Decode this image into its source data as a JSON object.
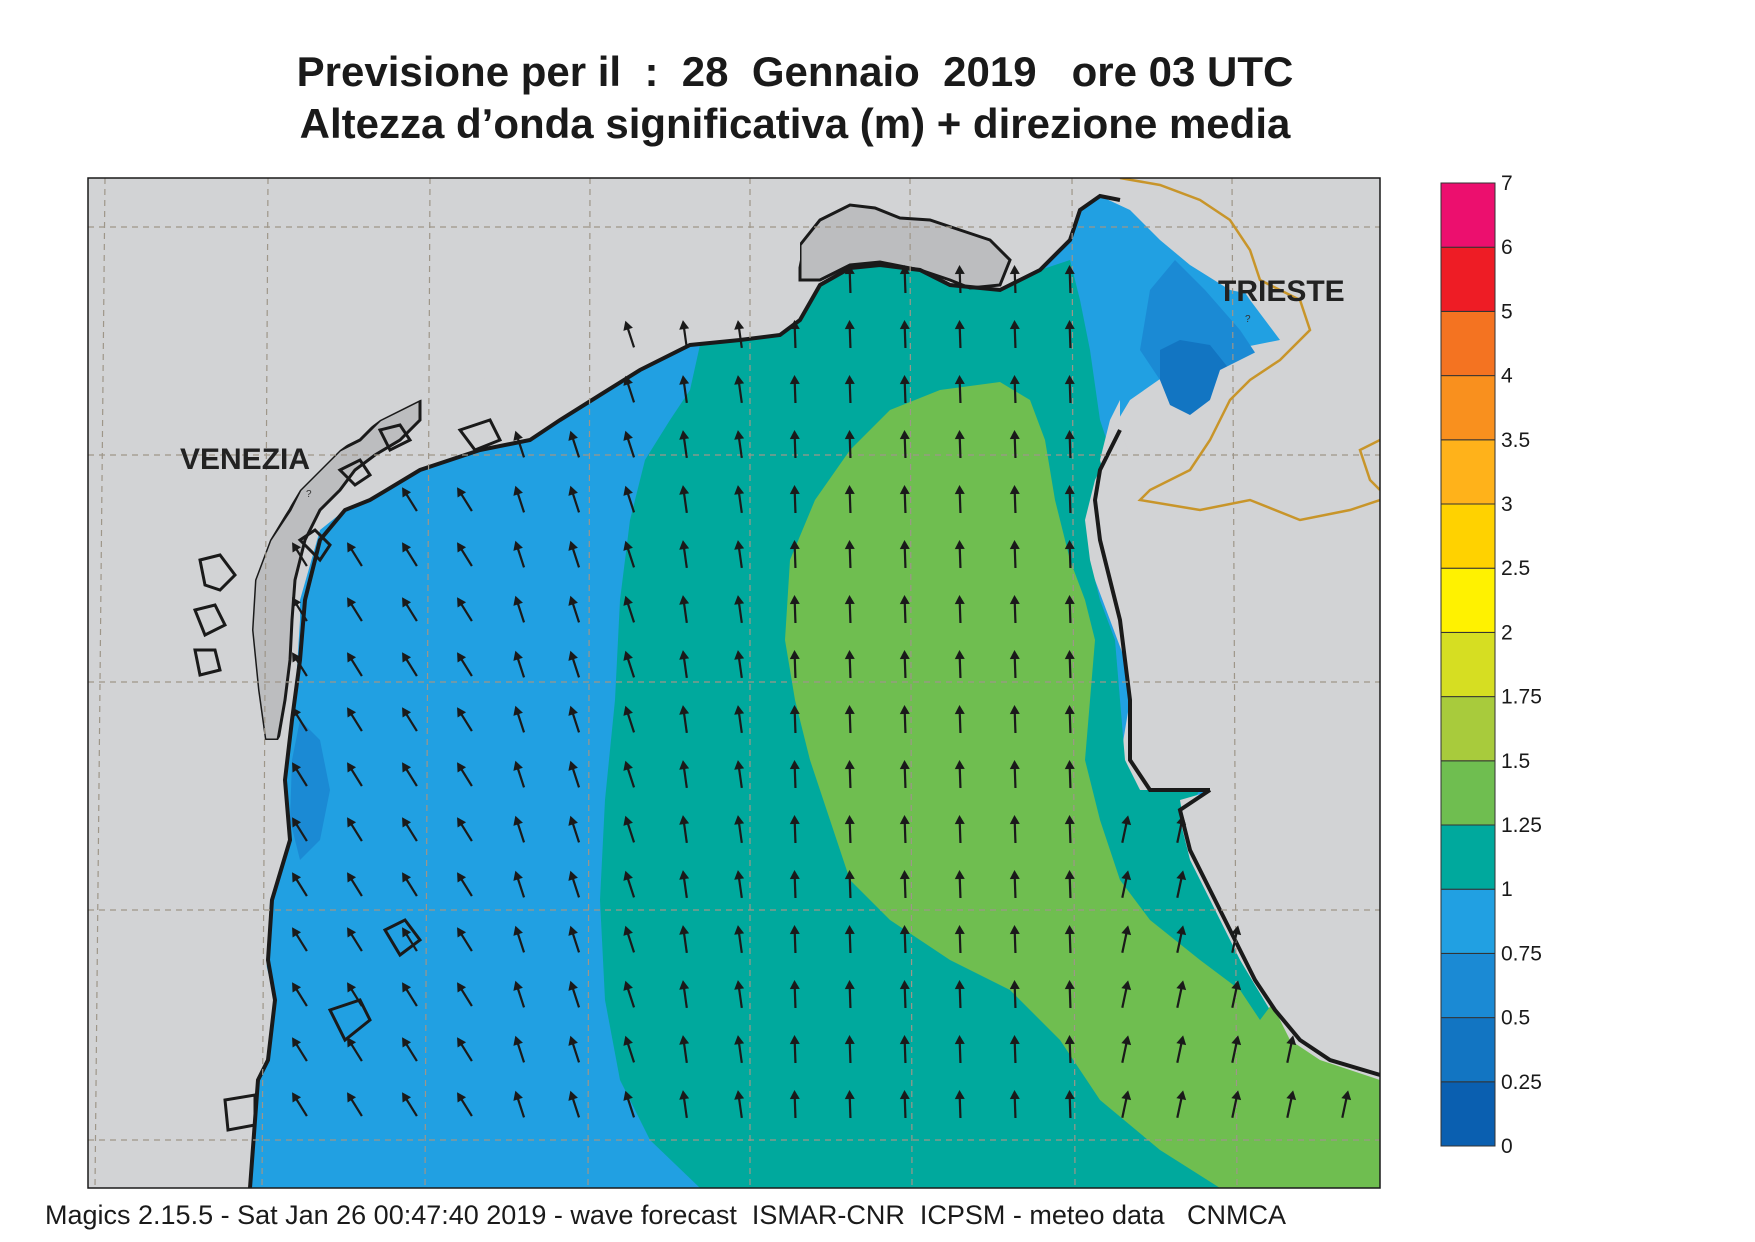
{
  "title_line1": "Previsione per il  :  28  Gennaio  2019   ore 03 UTC",
  "title_line2": "Altezza d’onda significativa (m) + direzione media",
  "cities": {
    "venezia": "VENEZIA",
    "trieste": "TRIESTE"
  },
  "footer": "Magics 2.15.5 - Sat Jan 26 00:47:40 2019 - wave forecast  ISMAR-CNR  ICPSM - meteo data   CNMCA",
  "colorbar": {
    "labels": [
      "0",
      "0.25",
      "0.5",
      "0.75",
      "1",
      "1.25",
      "1.5",
      "1.75",
      "2",
      "2.5",
      "3",
      "3.5",
      "4",
      "5",
      "6",
      "7"
    ],
    "colors": [
      "#0a5fb0",
      "#1275c2",
      "#1b8ad4",
      "#21a0e2",
      "#00a99d",
      "#6fbe50",
      "#a8cb3c",
      "#d6de22",
      "#fff200",
      "#ffd200",
      "#ffb21a",
      "#f9901e",
      "#f47321",
      "#ee1c25",
      "#ec0f6e"
    ]
  },
  "colors": {
    "land": "#d2d3d5",
    "zone_0_25_0_5": "#1275c2",
    "zone_0_5_0_75": "#1b8ad4",
    "zone_0_75_1": "#21a0e2",
    "zone_1_1_25": "#00a99d",
    "zone_1_25_1_5": "#6fbe50",
    "coast": "#1a1a1a",
    "border": "#c8952a"
  }
}
